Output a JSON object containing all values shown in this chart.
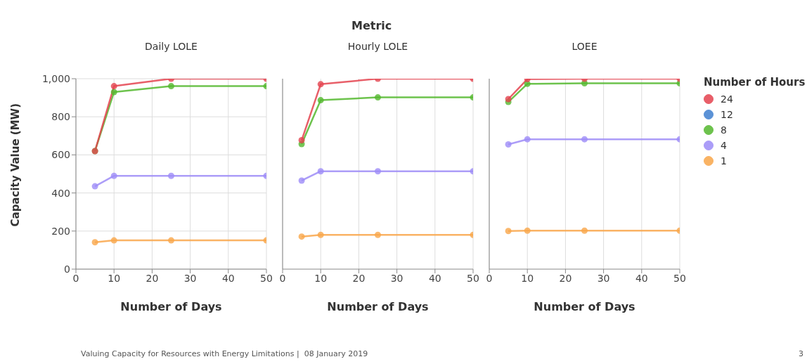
{
  "chart_data": [
    {
      "type": "line",
      "title": "Daily LOLE",
      "xlabel": "Number of Days",
      "ylabel": "Capacity Value (MW)",
      "annotations": [
        "Metric"
      ],
      "x": [
        5,
        10,
        25,
        50
      ],
      "xlim": [
        0,
        50
      ],
      "xticks": [
        0,
        10,
        20,
        30,
        40,
        50
      ],
      "ylim": [
        0,
        1000
      ],
      "yticks": [
        0,
        200,
        400,
        600,
        800,
        {
          "value": 1000,
          "label": "1,000"
        }
      ],
      "grid": true,
      "marker": "circle",
      "series": [
        {
          "color": "#e4434f",
          "values": [
            620,
            961,
            1000,
            1000
          ]
        },
        {
          "color": "#3f7fd0",
          "values": [
            null,
            null,
            null,
            null
          ]
        },
        {
          "color": "#54b82e",
          "values": [
            620,
            930,
            961,
            961
          ]
        },
        {
          "color": "#9d8cf7",
          "values": [
            435,
            490,
            490,
            490
          ]
        },
        {
          "color": "#f9a64a",
          "values": [
            141,
            151,
            151,
            151
          ]
        }
      ]
    },
    {
      "type": "line",
      "title": "Hourly LOLE",
      "xlabel": "Number of Days",
      "x": [
        5,
        10,
        25,
        50
      ],
      "xlim": [
        0,
        50
      ],
      "xticks": [
        0,
        10,
        20,
        30,
        40,
        50
      ],
      "ylim": [
        0,
        1000
      ],
      "yticks": [
        0,
        200,
        400,
        600,
        800,
        1000
      ],
      "tick_labels": "x",
      "grid": true,
      "marker": "circle",
      "series": [
        {
          "color": "#e4434f",
          "values": [
            677,
            971,
            1000,
            1000
          ]
        },
        {
          "color": "#3f7fd0",
          "values": [
            null,
            null,
            null,
            null
          ]
        },
        {
          "color": "#54b82e",
          "values": [
            657,
            887,
            902,
            902
          ]
        },
        {
          "color": "#9d8cf7",
          "values": [
            465,
            514,
            514,
            514
          ]
        },
        {
          "color": "#f9a64a",
          "values": [
            171,
            180,
            180,
            180
          ]
        }
      ]
    },
    {
      "type": "line",
      "title": "LOEE",
      "xlabel": "Number of Days",
      "legend_title": "Number of Hours",
      "annotations": [
        "Valuing Capacity for Resources with Energy Limitations |  08 January 2019",
        "3"
      ],
      "x": [
        5,
        10,
        25,
        50
      ],
      "xlim": [
        0,
        50
      ],
      "xticks": [
        0,
        10,
        20,
        30,
        40,
        50
      ],
      "ylim": [
        0,
        1000
      ],
      "yticks": [
        0,
        200,
        400,
        600,
        800,
        1000
      ],
      "tick_labels": "x",
      "grid": true,
      "marker": "circle",
      "legend": "right",
      "series": [
        {
          "name": "24",
          "color": "#e4434f",
          "values": [
            893,
            998,
            1000,
            1000
          ]
        },
        {
          "name": "12",
          "color": "#3f7fd0",
          "values": [
            null,
            null,
            null,
            null
          ]
        },
        {
          "name": "8",
          "color": "#54b82e",
          "values": [
            878,
            973,
            976,
            976
          ]
        },
        {
          "name": "4",
          "color": "#9d8cf7",
          "values": [
            655,
            682,
            682,
            682
          ]
        },
        {
          "name": "1",
          "color": "#f9a64a",
          "values": [
            200,
            202,
            202,
            202
          ]
        }
      ]
    }
  ]
}
